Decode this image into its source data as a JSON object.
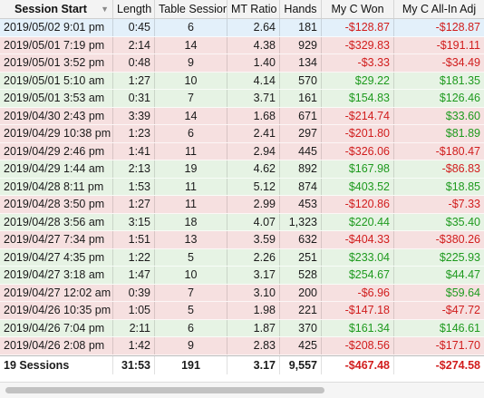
{
  "columns": [
    "Session Start",
    "Length",
    "Table Sessions",
    "MT Ratio",
    "Hands",
    "My C Won",
    "My C All-In Adj"
  ],
  "sort_icon": "sort-descending-icon",
  "colors": {
    "positive": "#1e9a1e",
    "negative": "#d11d1d",
    "row_positive": "#e6f3e4",
    "row_negative": "#f6e0e0",
    "row_selected": "#e3f0fa"
  },
  "rows": [
    {
      "start": "2019/05/02  9:01 pm",
      "length": "0:45",
      "tables": "6",
      "mt": "2.64",
      "hands": "181",
      "won": "-$128.87",
      "adj": "-$128.87",
      "won_sign": "neg",
      "adj_sign": "neg",
      "state": "sel"
    },
    {
      "start": "2019/05/01  7:19 pm",
      "length": "2:14",
      "tables": "14",
      "mt": "4.38",
      "hands": "929",
      "won": "-$329.83",
      "adj": "-$191.11",
      "won_sign": "neg",
      "adj_sign": "neg",
      "state": "neg"
    },
    {
      "start": "2019/05/01  3:52 pm",
      "length": "0:48",
      "tables": "9",
      "mt": "1.40",
      "hands": "134",
      "won": "-$3.33",
      "adj": "-$34.49",
      "won_sign": "neg",
      "adj_sign": "neg",
      "state": "neg"
    },
    {
      "start": "2019/05/01  5:10 am",
      "length": "1:27",
      "tables": "10",
      "mt": "4.14",
      "hands": "570",
      "won": "$29.22",
      "adj": "$181.35",
      "won_sign": "pos",
      "adj_sign": "pos",
      "state": "pos"
    },
    {
      "start": "2019/05/01  3:53 am",
      "length": "0:31",
      "tables": "7",
      "mt": "3.71",
      "hands": "161",
      "won": "$154.83",
      "adj": "$126.46",
      "won_sign": "pos",
      "adj_sign": "pos",
      "state": "pos"
    },
    {
      "start": "2019/04/30  2:43 pm",
      "length": "3:39",
      "tables": "14",
      "mt": "1.68",
      "hands": "671",
      "won": "-$214.74",
      "adj": "$33.60",
      "won_sign": "neg",
      "adj_sign": "pos",
      "state": "neg"
    },
    {
      "start": "2019/04/29 10:38 pm",
      "length": "1:23",
      "tables": "6",
      "mt": "2.41",
      "hands": "297",
      "won": "-$201.80",
      "adj": "$81.89",
      "won_sign": "neg",
      "adj_sign": "pos",
      "state": "neg"
    },
    {
      "start": "2019/04/29  2:46 pm",
      "length": "1:41",
      "tables": "11",
      "mt": "2.94",
      "hands": "445",
      "won": "-$326.06",
      "adj": "-$180.47",
      "won_sign": "neg",
      "adj_sign": "neg",
      "state": "neg"
    },
    {
      "start": "2019/04/29  1:44 am",
      "length": "2:13",
      "tables": "19",
      "mt": "4.62",
      "hands": "892",
      "won": "$167.98",
      "adj": "-$86.83",
      "won_sign": "pos",
      "adj_sign": "neg",
      "state": "pos"
    },
    {
      "start": "2019/04/28  8:11 pm",
      "length": "1:53",
      "tables": "11",
      "mt": "5.12",
      "hands": "874",
      "won": "$403.52",
      "adj": "$18.85",
      "won_sign": "pos",
      "adj_sign": "pos",
      "state": "pos"
    },
    {
      "start": "2019/04/28  3:50 pm",
      "length": "1:27",
      "tables": "11",
      "mt": "2.99",
      "hands": "453",
      "won": "-$120.86",
      "adj": "-$7.33",
      "won_sign": "neg",
      "adj_sign": "neg",
      "state": "neg"
    },
    {
      "start": "2019/04/28  3:56 am",
      "length": "3:15",
      "tables": "18",
      "mt": "4.07",
      "hands": "1,323",
      "won": "$220.44",
      "adj": "$35.40",
      "won_sign": "pos",
      "adj_sign": "pos",
      "state": "pos"
    },
    {
      "start": "2019/04/27  7:34 pm",
      "length": "1:51",
      "tables": "13",
      "mt": "3.59",
      "hands": "632",
      "won": "-$404.33",
      "adj": "-$380.26",
      "won_sign": "neg",
      "adj_sign": "neg",
      "state": "neg"
    },
    {
      "start": "2019/04/27  4:35 pm",
      "length": "1:22",
      "tables": "5",
      "mt": "2.26",
      "hands": "251",
      "won": "$233.04",
      "adj": "$225.93",
      "won_sign": "pos",
      "adj_sign": "pos",
      "state": "pos"
    },
    {
      "start": "2019/04/27  3:18 am",
      "length": "1:47",
      "tables": "10",
      "mt": "3.17",
      "hands": "528",
      "won": "$254.67",
      "adj": "$44.47",
      "won_sign": "pos",
      "adj_sign": "pos",
      "state": "pos"
    },
    {
      "start": "2019/04/27 12:02 am",
      "length": "0:39",
      "tables": "7",
      "mt": "3.10",
      "hands": "200",
      "won": "-$6.96",
      "adj": "$59.64",
      "won_sign": "neg",
      "adj_sign": "pos",
      "state": "neg"
    },
    {
      "start": "2019/04/26 10:35 pm",
      "length": "1:05",
      "tables": "5",
      "mt": "1.98",
      "hands": "221",
      "won": "-$147.18",
      "adj": "-$47.72",
      "won_sign": "neg",
      "adj_sign": "neg",
      "state": "neg"
    },
    {
      "start": "2019/04/26  7:04 pm",
      "length": "2:11",
      "tables": "6",
      "mt": "1.87",
      "hands": "370",
      "won": "$161.34",
      "adj": "$146.61",
      "won_sign": "pos",
      "adj_sign": "pos",
      "state": "pos"
    },
    {
      "start": "2019/04/26  2:08 pm",
      "length": "1:42",
      "tables": "9",
      "mt": "2.83",
      "hands": "425",
      "won": "-$208.56",
      "adj": "-$171.70",
      "won_sign": "neg",
      "adj_sign": "neg",
      "state": "neg"
    }
  ],
  "totals": {
    "start": "19 Sessions",
    "length": "31:53",
    "tables": "191",
    "mt": "3.17",
    "hands": "9,557",
    "won": "-$467.48",
    "adj": "-$274.58",
    "won_sign": "neg",
    "adj_sign": "neg"
  }
}
